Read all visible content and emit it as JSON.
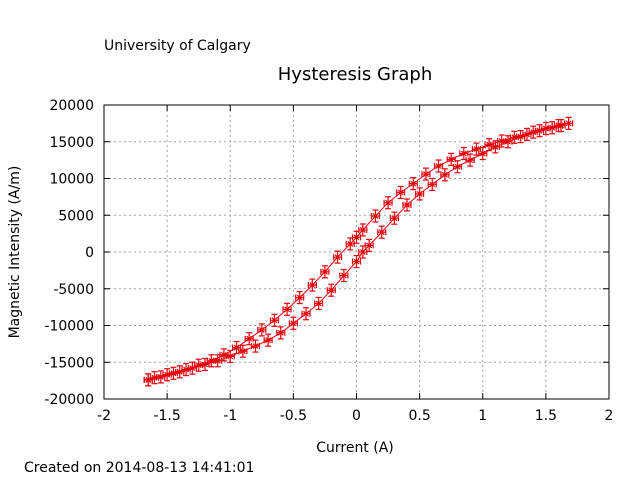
{
  "header": {
    "institution": "University of Calgary",
    "created": "Created on 2014-08-13 14:41:01"
  },
  "chart_data": {
    "type": "line",
    "title": "Hysteresis Graph",
    "xlabel": "Current (A)",
    "ylabel": "Magnetic Intensity (A/m)",
    "xlim": [
      -2,
      2
    ],
    "ylim": [
      -20000,
      20000
    ],
    "xticks": [
      "-2",
      "-1.5",
      "-1",
      "-0.5",
      "0",
      "0.5",
      "1",
      "1.5",
      "2"
    ],
    "yticks": [
      "20000",
      "15000",
      "10000",
      "5000",
      "0",
      "-5000",
      "-10000",
      "-15000",
      "-20000"
    ],
    "grid": true,
    "colors": {
      "series": "#e8000b",
      "grid": "#a0a0a0",
      "axis": "#000000"
    },
    "series": [
      {
        "x": [
          1.68,
          1.6,
          1.5,
          1.4,
          1.3,
          1.2,
          1.1,
          1.0,
          0.9,
          0.8,
          0.7,
          0.6,
          0.5,
          0.4,
          0.3,
          0.2,
          0.1,
          0.05,
          0.0,
          -0.1,
          -0.2,
          -0.3,
          -0.4,
          -0.5,
          -0.6,
          -0.7,
          -0.8,
          -0.9,
          -1.0,
          -1.1,
          -1.2,
          -1.3,
          -1.4,
          -1.5,
          -1.6,
          -1.65
        ],
        "y": [
          17500,
          17200,
          16800,
          16300,
          15700,
          15000,
          14300,
          13400,
          12500,
          11600,
          10500,
          9200,
          7900,
          6400,
          4600,
          2700,
          900,
          0,
          -1300,
          -3200,
          -5200,
          -7000,
          -8400,
          -9700,
          -11000,
          -12000,
          -12800,
          -13500,
          -14200,
          -14800,
          -15300,
          -15800,
          -16300,
          -16700,
          -17100,
          -17400
        ]
      },
      {
        "x": [
          -1.65,
          -1.55,
          -1.45,
          -1.35,
          -1.25,
          -1.15,
          -1.05,
          -0.95,
          -0.85,
          -0.75,
          -0.65,
          -0.55,
          -0.45,
          -0.35,
          -0.25,
          -0.15,
          -0.05,
          0.0,
          0.05,
          0.15,
          0.25,
          0.35,
          0.45,
          0.55,
          0.65,
          0.75,
          0.85,
          0.95,
          1.05,
          1.15,
          1.25,
          1.35,
          1.45,
          1.55,
          1.62
        ],
        "y": [
          -17400,
          -17000,
          -16500,
          -16000,
          -15400,
          -14800,
          -14000,
          -13000,
          -11800,
          -10600,
          -9300,
          -7800,
          -6200,
          -4500,
          -2700,
          -700,
          1100,
          2000,
          3000,
          4900,
          6700,
          8100,
          9300,
          10600,
          11700,
          12600,
          13400,
          14000,
          14600,
          15100,
          15600,
          16000,
          16500,
          16900,
          17200
        ]
      }
    ]
  }
}
